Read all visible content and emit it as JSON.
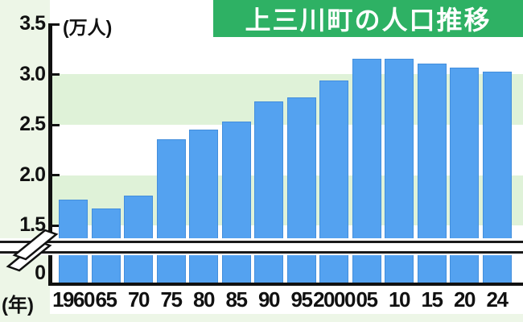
{
  "title_banner": {
    "text": "上三川町の人口推移"
  },
  "colors": {
    "banner_green": "#2eb164",
    "banner_text": "#ffffff",
    "bar_blue": "#54a2f0",
    "stripe_green": "#dff2d8",
    "page_background": "#edf6e7",
    "axis_black": "#111111"
  },
  "chart_data": {
    "type": "bar",
    "title": "上三川町の人口推移",
    "unit_label": "(万人)",
    "x_axis_unit_label": "(年)",
    "categories": [
      "1960",
      "65",
      "70",
      "75",
      "80",
      "85",
      "90",
      "95",
      "2000",
      "05",
      "10",
      "15",
      "20",
      "24"
    ],
    "values": [
      1.76,
      1.67,
      1.8,
      2.36,
      2.45,
      2.53,
      2.73,
      2.77,
      2.94,
      3.16,
      3.16,
      3.11,
      3.07,
      3.03
    ],
    "ylabel": "万人",
    "xlabel": "年",
    "y_ticks": [
      "3.5",
      "3.0",
      "2.5",
      "2.0",
      "1.5",
      "0"
    ],
    "y_tick_values": [
      3.5,
      3.0,
      2.5,
      2.0,
      1.5,
      0
    ],
    "ylim": [
      0,
      3.5
    ],
    "axis_break": {
      "between": [
        0,
        1.5
      ]
    },
    "grid": "alternating horizontal background stripes",
    "legend": "none"
  }
}
